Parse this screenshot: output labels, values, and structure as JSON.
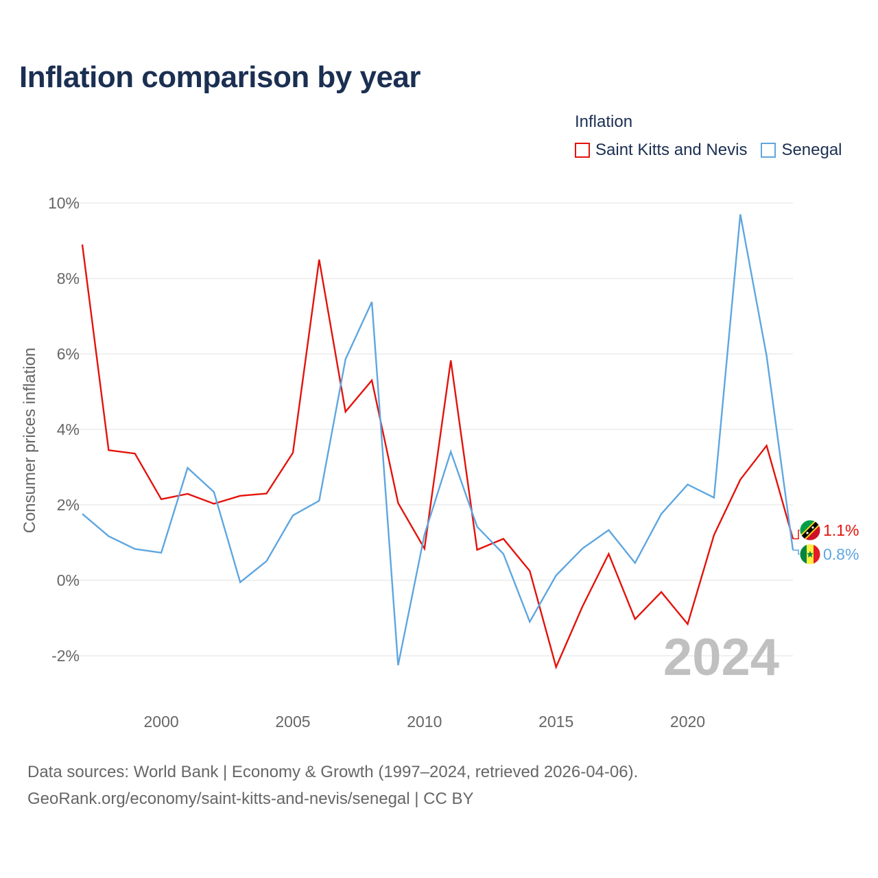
{
  "title": "Inflation comparison by year",
  "legend": {
    "title": "Inflation",
    "items": [
      {
        "label": "Saint Kitts and Nevis",
        "color": "#e3120b"
      },
      {
        "label": "Senegal",
        "color": "#5ea6e0"
      }
    ]
  },
  "watermark_year": "2024",
  "end_labels": [
    {
      "series": "Saint Kitts and Nevis",
      "text": "1.1%",
      "color": "#e3120b",
      "flag": "saint-kitts-and-nevis-flag-icon"
    },
    {
      "series": "Senegal",
      "text": "0.8%",
      "color": "#5ea6e0",
      "flag": "senegal-flag-icon"
    }
  ],
  "footer": {
    "line1": "Data sources: World Bank | Economy & Growth (1997–2024, retrieved 2026-04-06).",
    "line2": "GeoRank.org/economy/saint-kitts-and-nevis/senegal | CC BY"
  },
  "chart_data": {
    "type": "line",
    "title": "Inflation comparison by year",
    "xlabel": "",
    "ylabel": "Consumer prices inflation",
    "x": [
      1997,
      1998,
      1999,
      2000,
      2001,
      2002,
      2003,
      2004,
      2005,
      2006,
      2007,
      2008,
      2009,
      2010,
      2011,
      2012,
      2013,
      2014,
      2015,
      2016,
      2017,
      2018,
      2019,
      2020,
      2021,
      2022,
      2023,
      2024
    ],
    "xlim": [
      1997,
      2024
    ],
    "ylim": [
      -3,
      10
    ],
    "y_ticks": [
      {
        "value": 10,
        "label": "10%"
      },
      {
        "value": 8,
        "label": "8%"
      },
      {
        "value": 6,
        "label": "6%"
      },
      {
        "value": 4,
        "label": "4%"
      },
      {
        "value": 2,
        "label": "2%"
      },
      {
        "value": 0,
        "label": "0%"
      },
      {
        "value": -2,
        "label": "-2%"
      }
    ],
    "x_ticks": [
      {
        "value": 2000,
        "label": "2000"
      },
      {
        "value": 2005,
        "label": "2005"
      },
      {
        "value": 2010,
        "label": "2010"
      },
      {
        "value": 2015,
        "label": "2015"
      },
      {
        "value": 2020,
        "label": "2020"
      }
    ],
    "grid": true,
    "legend_position": "top-right",
    "series": [
      {
        "name": "Saint Kitts and Nevis",
        "color": "#e3120b",
        "values": [
          8.9,
          3.45,
          3.36,
          2.15,
          2.29,
          2.03,
          2.24,
          2.3,
          3.38,
          8.5,
          4.47,
          5.3,
          2.05,
          0.84,
          5.83,
          0.81,
          1.1,
          0.25,
          -2.3,
          -0.7,
          0.7,
          -1.03,
          -0.31,
          -1.16,
          1.2,
          2.67,
          3.57,
          1.1
        ]
      },
      {
        "name": "Senegal",
        "color": "#5ea6e0",
        "values": [
          1.76,
          1.17,
          0.83,
          0.73,
          2.98,
          2.34,
          -0.05,
          0.51,
          1.72,
          2.11,
          5.86,
          7.38,
          -2.25,
          1.21,
          3.41,
          1.42,
          0.7,
          -1.1,
          0.13,
          0.84,
          1.33,
          0.46,
          1.76,
          2.54,
          2.19,
          9.7,
          5.95,
          0.8
        ]
      }
    ]
  }
}
